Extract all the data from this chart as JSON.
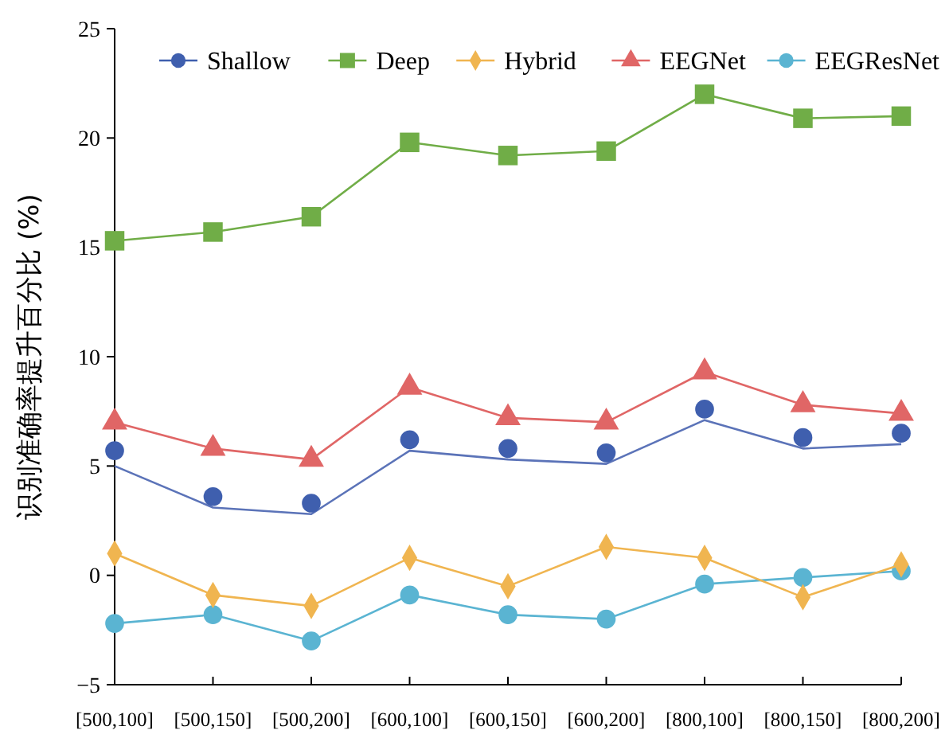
{
  "chart_data": {
    "type": "line",
    "ylabel": "识别准确率提升百分比 (%)",
    "categories": [
      "[500,100]",
      "[500,150]",
      "[500,200]",
      "[600,100]",
      "[600,150]",
      "[600,200]",
      "[800,100]",
      "[800,150]",
      "[800,200]"
    ],
    "ylim": [
      -5,
      25
    ],
    "yticks": [
      -5,
      0,
      5,
      10,
      15,
      20,
      25
    ],
    "grid": false,
    "legend": "top",
    "series": [
      {
        "name": "Shallow",
        "type": "scatter",
        "marker": "circle",
        "color": "#3f5fae",
        "values": [
          5.7,
          3.6,
          3.3,
          6.2,
          5.8,
          5.6,
          7.6,
          6.3,
          6.5
        ]
      },
      {
        "type": "line",
        "marker": "none",
        "color": "#5b73b8",
        "values": [
          5.0,
          3.1,
          2.8,
          5.7,
          5.3,
          5.1,
          7.1,
          5.8,
          6.0
        ]
      },
      {
        "name": "Deep",
        "marker": "square",
        "color": "#70ad47",
        "values": [
          15.3,
          15.7,
          16.4,
          19.8,
          19.2,
          19.4,
          22.0,
          20.9,
          21.0
        ]
      },
      {
        "name": "Hybrid",
        "marker": "diamond",
        "color": "#f0b550",
        "values": [
          1.0,
          -0.9,
          -1.4,
          0.8,
          -0.5,
          1.3,
          0.8,
          -1.0,
          0.5
        ]
      },
      {
        "name": "EEGNet",
        "marker": "triangle",
        "color": "#e06666",
        "values": [
          7.0,
          5.8,
          5.3,
          8.6,
          7.2,
          7.0,
          9.3,
          7.8,
          7.4
        ]
      },
      {
        "name": "EEGResNet",
        "marker": "circle",
        "color": "#5ab4d2",
        "values": [
          -2.2,
          -1.8,
          -3.0,
          -0.9,
          -1.8,
          -2.0,
          -0.4,
          -0.1,
          0.2
        ]
      }
    ]
  }
}
